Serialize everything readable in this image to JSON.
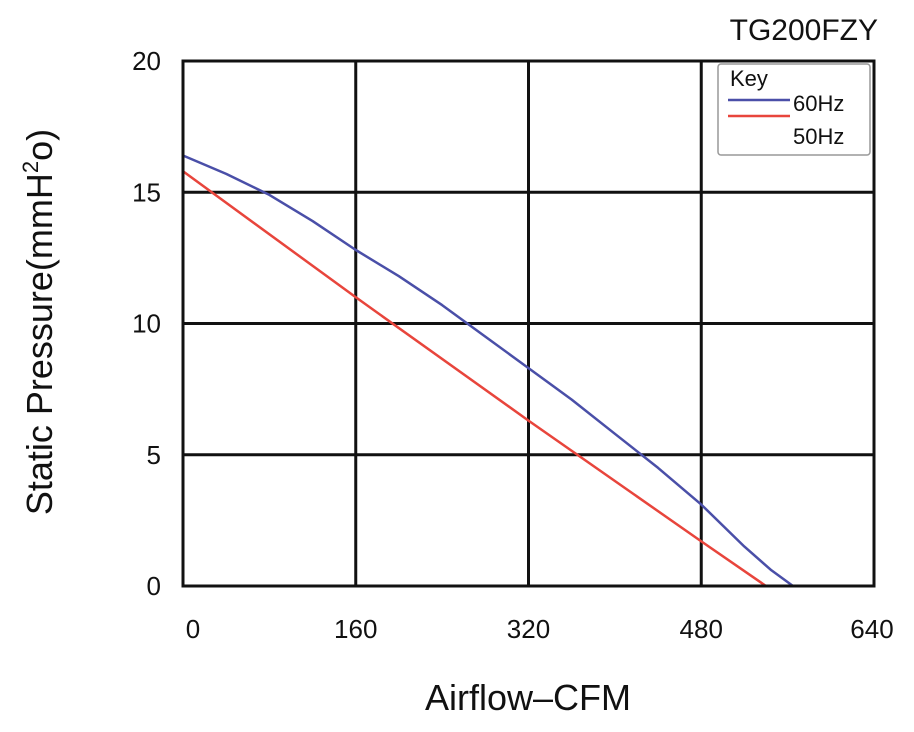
{
  "chart_data": {
    "type": "line",
    "title": "TG200FZY",
    "xlabel": "Airflow–CFM",
    "ylabel_parts": {
      "base": "Static Pressure(mmH",
      "sup": "2",
      "end": "o)"
    },
    "xlim": [
      0,
      640
    ],
    "ylim": [
      0,
      20
    ],
    "x_ticks": [
      0,
      160,
      320,
      480,
      640
    ],
    "y_ticks": [
      0,
      5,
      10,
      15,
      20
    ],
    "grid": true,
    "legend": {
      "title": "Key",
      "placement": "top-right"
    },
    "series": [
      {
        "name": "60Hz",
        "color": "#4a4fa8",
        "x": [
          0,
          40,
          80,
          120,
          160,
          200,
          240,
          280,
          320,
          360,
          400,
          440,
          480,
          520,
          545,
          565
        ],
        "y": [
          16.4,
          15.7,
          14.9,
          13.9,
          12.8,
          11.8,
          10.7,
          9.5,
          8.3,
          7.1,
          5.8,
          4.5,
          3.1,
          1.5,
          0.6,
          0.0
        ]
      },
      {
        "name": "50Hz",
        "color": "#e8453c",
        "x": [
          0,
          160,
          320,
          480,
          540
        ],
        "y": [
          15.8,
          11.0,
          6.3,
          1.7,
          0.0
        ]
      }
    ]
  }
}
